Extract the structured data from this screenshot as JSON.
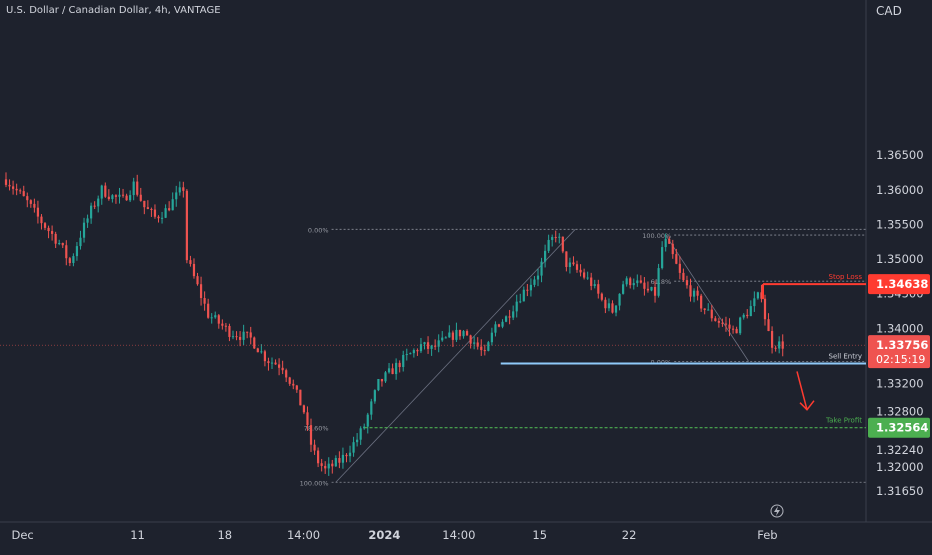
{
  "header": {
    "symbol_title": "U.S. Dollar / Canadian Dollar, 4h, VANTAGE",
    "currency": "CAD"
  },
  "colors": {
    "background": "#1e222d",
    "up": "#26a69a",
    "down": "#ef5350",
    "stop_loss": "#ff3b30",
    "entry": "#90caf9",
    "take_profit": "#4caf50"
  },
  "chart_data": {
    "type": "candlestick",
    "instrument": "U.S. Dollar / Canadian Dollar",
    "timeframe": "4h",
    "broker": "VANTAGE",
    "x_ticks": [
      "Dec",
      "11",
      "18",
      "14:00",
      "2024",
      "14:00",
      "15",
      "22",
      "Feb"
    ],
    "y_ticks": [
      1.3165,
      1.32,
      1.3224,
      1.328,
      1.332,
      1.34,
      1.345,
      1.35,
      1.355,
      1.36,
      1.365
    ],
    "ylim": [
      1.3141,
      1.3681
    ],
    "grid": false,
    "path": [
      [
        0,
        1.3615
      ],
      [
        2,
        1.3582
      ],
      [
        3,
        1.356
      ],
      [
        5,
        1.3523
      ],
      [
        6,
        1.3494
      ],
      [
        7,
        1.3535
      ],
      [
        8,
        1.357
      ],
      [
        9,
        1.36
      ],
      [
        10,
        1.359
      ],
      [
        11,
        1.3585
      ],
      [
        12,
        1.3608
      ],
      [
        13,
        1.3575
      ],
      [
        14,
        1.356
      ],
      [
        15,
        1.357
      ],
      [
        16,
        1.359
      ],
      [
        16.8,
        1.3605
      ],
      [
        17,
        1.35
      ],
      [
        19,
        1.342
      ],
      [
        21,
        1.3395
      ],
      [
        23,
        1.3385
      ],
      [
        24.5,
        1.3355
      ],
      [
        26,
        1.3345
      ],
      [
        27,
        1.3315
      ],
      [
        28,
        1.328
      ],
      [
        28.5,
        1.324
      ],
      [
        29.2,
        1.321
      ],
      [
        30,
        1.3195
      ],
      [
        31.5,
        1.321
      ],
      [
        33,
        1.324
      ],
      [
        33.7,
        1.326
      ],
      [
        35,
        1.332
      ],
      [
        37,
        1.335
      ],
      [
        39,
        1.3375
      ],
      [
        40,
        1.337
      ],
      [
        41,
        1.338
      ],
      [
        42,
        1.339
      ],
      [
        43,
        1.3395
      ],
      [
        44,
        1.338
      ],
      [
        45,
        1.336
      ],
      [
        46,
        1.3405
      ],
      [
        47,
        1.3415
      ],
      [
        48,
        1.344
      ],
      [
        49,
        1.346
      ],
      [
        50,
        1.348
      ],
      [
        51,
        1.352
      ],
      [
        51.8,
        1.354
      ],
      [
        52.5,
        1.3495
      ],
      [
        54,
        1.348
      ],
      [
        55,
        1.3465
      ],
      [
        56,
        1.344
      ],
      [
        57,
        1.3425
      ],
      [
        58,
        1.3465
      ],
      [
        59,
        1.347
      ],
      [
        60,
        1.3455
      ],
      [
        61,
        1.345
      ],
      [
        61.8,
        1.353
      ],
      [
        62.5,
        1.351
      ],
      [
        63.5,
        1.347
      ],
      [
        64.5,
        1.345
      ],
      [
        65.5,
        1.343
      ],
      [
        66.5,
        1.3415
      ],
      [
        67.5,
        1.3405
      ],
      [
        68.5,
        1.3395
      ],
      [
        69,
        1.341
      ],
      [
        70,
        1.343
      ],
      [
        70.5,
        1.3442
      ],
      [
        71,
        1.345
      ],
      [
        71.5,
        1.34
      ],
      [
        72,
        1.3378
      ],
      [
        73,
        1.3376
      ]
    ],
    "last_price": 1.33756,
    "countdown": "02:15:19",
    "annotations": {
      "stop_loss": {
        "label": "Stop Loss",
        "value": "1.34638",
        "price": 1.34638
      },
      "sell_entry": {
        "label": "Sell Entry",
        "price": 1.33492
      },
      "take_profit": {
        "label": "Take Profit",
        "value": "1.32564",
        "price": 1.32564
      },
      "fib_left": {
        "levels": [
          {
            "label": "0.00%",
            "price": 1.35429
          },
          {
            "label": "78.60%",
            "price": 1.32564
          },
          {
            "label": "100.00%",
            "price": 1.31776
          }
        ]
      },
      "fib_right": {
        "levels": [
          {
            "label": "100.00%",
            "price": 1.35346
          },
          {
            "label": "61.8%",
            "price": 1.3468
          },
          {
            "label": "0.00%",
            "price": 1.3352
          }
        ]
      }
    }
  }
}
